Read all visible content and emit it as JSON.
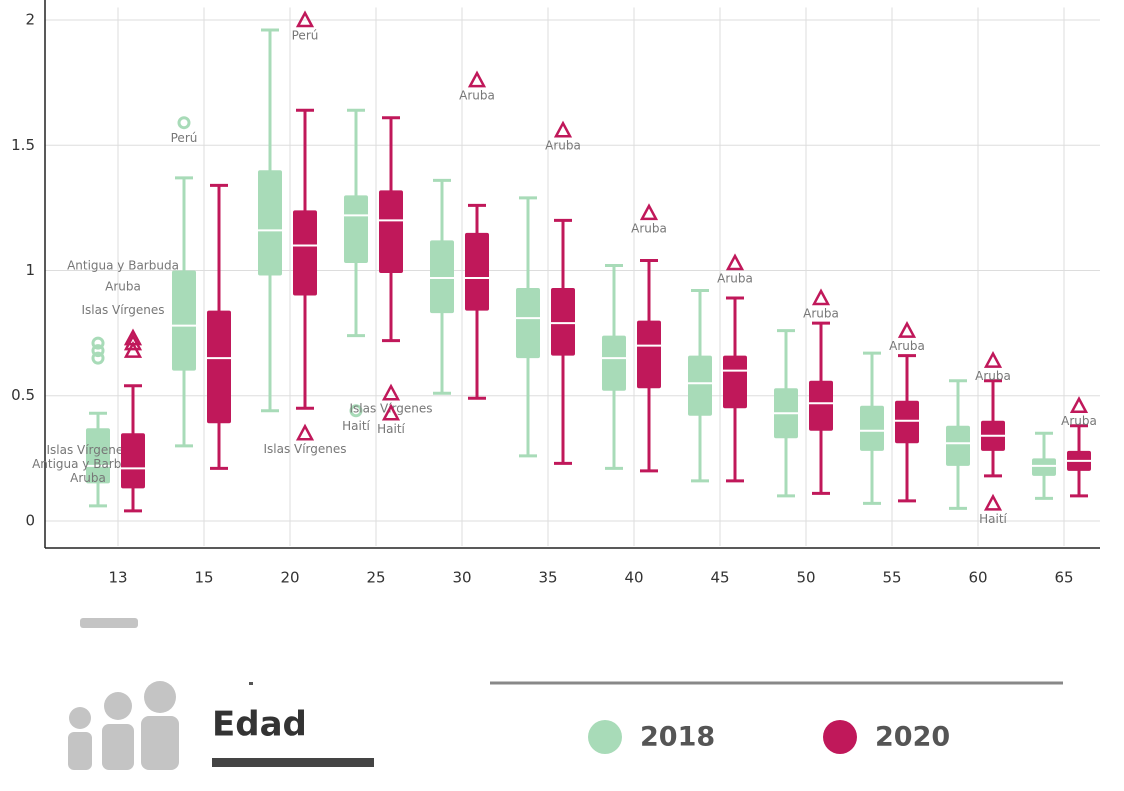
{
  "chart_data": {
    "type": "box",
    "xlabel": "Edad",
    "categories": [
      "13",
      "15",
      "20",
      "25",
      "30",
      "35",
      "40",
      "45",
      "50",
      "55",
      "60",
      "65"
    ],
    "ylim": [
      -0.1,
      2.05
    ],
    "yticks": [
      0,
      0.5,
      1,
      1.5,
      2
    ],
    "grid": true,
    "series": [
      {
        "name": "2018",
        "color": "#a8dbb8",
        "boxes": [
          {
            "min": 0.06,
            "q1": 0.15,
            "median": 0.22,
            "q3": 0.37,
            "max": 0.43,
            "outliers": [
              {
                "value": 0.71,
                "label": "Islas Vírgenes"
              },
              {
                "value": 0.68,
                "label": "Antigua y Barbuda"
              },
              {
                "value": 0.65,
                "label": "Aruba"
              }
            ]
          },
          {
            "min": 0.3,
            "q1": 0.6,
            "median": 0.78,
            "q3": 1.0,
            "max": 1.37,
            "outliers": [
              {
                "value": 1.59,
                "label": "Perú"
              }
            ]
          },
          {
            "min": 0.44,
            "q1": 0.98,
            "median": 1.16,
            "q3": 1.4,
            "max": 1.96,
            "outliers": []
          },
          {
            "min": 0.74,
            "q1": 1.03,
            "median": 1.22,
            "q3": 1.3,
            "max": 1.64,
            "outliers": [
              {
                "value": 0.44,
                "label": "Haití"
              }
            ]
          },
          {
            "min": 0.51,
            "q1": 0.83,
            "median": 0.97,
            "q3": 1.12,
            "max": 1.36,
            "outliers": []
          },
          {
            "min": 0.26,
            "q1": 0.65,
            "median": 0.81,
            "q3": 0.93,
            "max": 1.29,
            "outliers": []
          },
          {
            "min": 0.21,
            "q1": 0.52,
            "median": 0.65,
            "q3": 0.74,
            "max": 1.02,
            "outliers": []
          },
          {
            "min": 0.16,
            "q1": 0.42,
            "median": 0.55,
            "q3": 0.66,
            "max": 0.92,
            "outliers": []
          },
          {
            "min": 0.1,
            "q1": 0.33,
            "median": 0.43,
            "q3": 0.53,
            "max": 0.76,
            "outliers": []
          },
          {
            "min": 0.07,
            "q1": 0.28,
            "median": 0.36,
            "q3": 0.46,
            "max": 0.67,
            "outliers": []
          },
          {
            "min": 0.05,
            "q1": 0.22,
            "median": 0.31,
            "q3": 0.38,
            "max": 0.56,
            "outliers": []
          },
          {
            "min": 0.09,
            "q1": 0.18,
            "median": 0.22,
            "q3": 0.25,
            "max": 0.35,
            "outliers": []
          }
        ]
      },
      {
        "name": "2020",
        "color": "#c0185a",
        "boxes": [
          {
            "min": 0.04,
            "q1": 0.13,
            "median": 0.21,
            "q3": 0.35,
            "max": 0.54,
            "outliers": [
              {
                "value": 0.73,
                "label": "Antigua y Barbuda"
              },
              {
                "value": 0.71,
                "label": "Aruba"
              },
              {
                "value": 0.68,
                "label": "Islas Vírgenes"
              }
            ]
          },
          {
            "min": 0.21,
            "q1": 0.39,
            "median": 0.65,
            "q3": 0.84,
            "max": 1.34,
            "outliers": []
          },
          {
            "min": 0.45,
            "q1": 0.9,
            "median": 1.1,
            "q3": 1.24,
            "max": 1.64,
            "outliers": [
              {
                "value": 2.0,
                "label": "Perú"
              },
              {
                "value": 0.35,
                "label": "Islas Vírgenes"
              }
            ]
          },
          {
            "min": 0.72,
            "q1": 0.99,
            "median": 1.2,
            "q3": 1.32,
            "max": 1.61,
            "outliers": [
              {
                "value": 0.51,
                "label": "Islas Vírgenes"
              },
              {
                "value": 0.43,
                "label": "Haití"
              }
            ]
          },
          {
            "min": 0.49,
            "q1": 0.84,
            "median": 0.97,
            "q3": 1.15,
            "max": 1.26,
            "outliers": [
              {
                "value": 1.76,
                "label": "Aruba"
              }
            ]
          },
          {
            "min": 0.23,
            "q1": 0.66,
            "median": 0.79,
            "q3": 0.93,
            "max": 1.2,
            "outliers": [
              {
                "value": 1.56,
                "label": "Aruba"
              }
            ]
          },
          {
            "min": 0.2,
            "q1": 0.53,
            "median": 0.7,
            "q3": 0.8,
            "max": 1.04,
            "outliers": [
              {
                "value": 1.23,
                "label": "Aruba"
              }
            ]
          },
          {
            "min": 0.16,
            "q1": 0.45,
            "median": 0.6,
            "q3": 0.66,
            "max": 0.89,
            "outliers": [
              {
                "value": 1.03,
                "label": "Aruba"
              }
            ]
          },
          {
            "min": 0.11,
            "q1": 0.36,
            "median": 0.47,
            "q3": 0.56,
            "max": 0.79,
            "outliers": [
              {
                "value": 0.89,
                "label": "Aruba"
              }
            ]
          },
          {
            "min": 0.08,
            "q1": 0.31,
            "median": 0.4,
            "q3": 0.48,
            "max": 0.66,
            "outliers": [
              {
                "value": 0.76,
                "label": "Aruba"
              }
            ]
          },
          {
            "min": 0.18,
            "q1": 0.28,
            "median": 0.34,
            "q3": 0.4,
            "max": 0.56,
            "outliers": [
              {
                "value": 0.64,
                "label": "Aruba"
              },
              {
                "value": 0.07,
                "label": "Haití"
              }
            ]
          },
          {
            "min": 0.1,
            "q1": 0.2,
            "median": 0.24,
            "q3": 0.28,
            "max": 0.38,
            "outliers": [
              {
                "value": 0.46,
                "label": "Aruba"
              }
            ]
          }
        ]
      }
    ]
  }
}
